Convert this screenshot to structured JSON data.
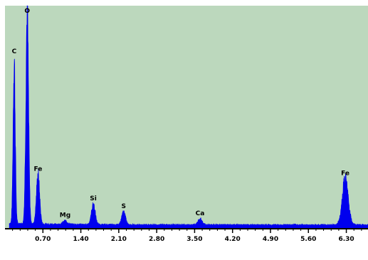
{
  "chart_data": {
    "type": "area",
    "title": "",
    "xlabel": "",
    "ylabel": "",
    "xlim": [
      0,
      6.7
    ],
    "ylim": [
      0,
      260
    ],
    "grid": false,
    "legend": "none",
    "colors": {
      "plot_background": "#bcd8bd",
      "series": "#0000ee",
      "axis": "#000000"
    },
    "xticks": [
      0.7,
      1.4,
      2.1,
      2.8,
      3.5,
      4.2,
      4.9,
      5.6,
      6.3
    ],
    "xtick_labels": [
      "0.70",
      "1.40",
      "2.10",
      "2.80",
      "3.50",
      "4.20",
      "4.90",
      "5.60",
      "6.30"
    ],
    "peaks": [
      {
        "label": "C",
        "x": 0.17,
        "y": 195,
        "width": 0.02
      },
      {
        "label": "O",
        "x": 0.41,
        "y": 250,
        "width": 0.025
      },
      {
        "label": "Fe",
        "x": 0.61,
        "y": 58,
        "width": 0.03
      },
      {
        "label": "Mg",
        "x": 1.11,
        "y": 4,
        "width": 0.04
      },
      {
        "label": "Si",
        "x": 1.63,
        "y": 24,
        "width": 0.035
      },
      {
        "label": "S",
        "x": 2.19,
        "y": 15,
        "width": 0.035
      },
      {
        "label": "Ca",
        "x": 3.6,
        "y": 7,
        "width": 0.04
      },
      {
        "label": "Fe",
        "x": 6.28,
        "y": 54,
        "width": 0.055
      }
    ],
    "baseline": 3
  }
}
